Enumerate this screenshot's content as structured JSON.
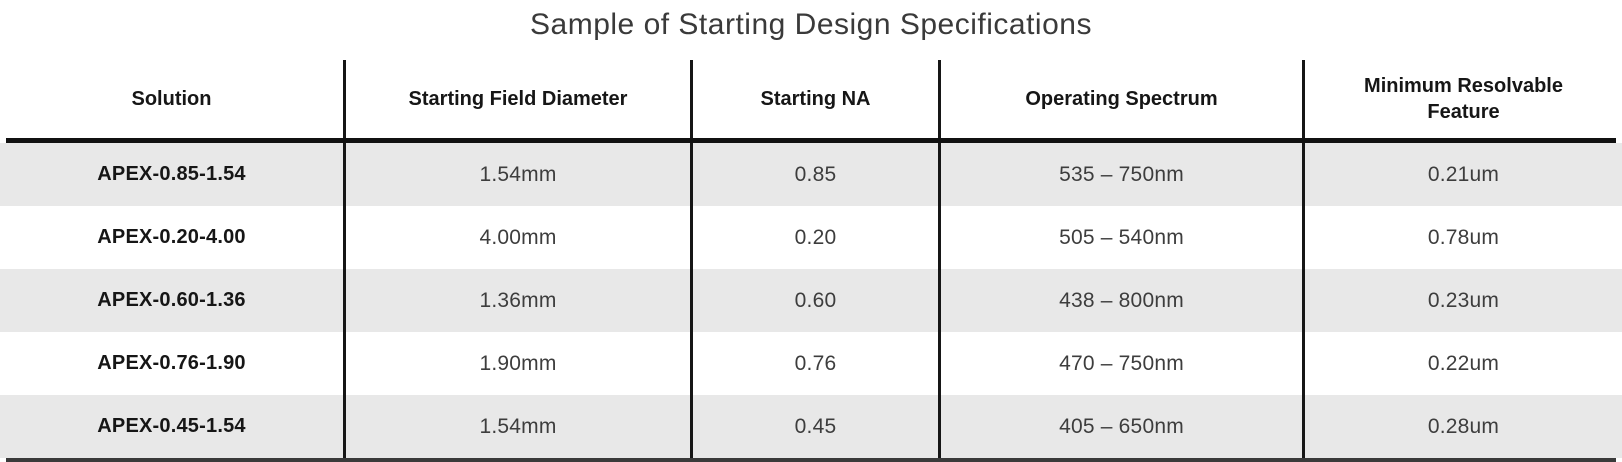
{
  "chart_data": {
    "type": "table",
    "title": "Sample of Starting Design Specifications",
    "columns": [
      "Solution",
      "Starting Field Diameter",
      "Starting NA",
      "Operating Spectrum",
      "Minimum Resolvable Feature"
    ],
    "rows": [
      [
        "APEX-0.85-1.54",
        "1.54mm",
        "0.85",
        "535 – 750nm",
        "0.21um"
      ],
      [
        "APEX-0.20-4.00",
        "4.00mm",
        "0.20",
        "505 – 540nm",
        "0.78um"
      ],
      [
        "APEX-0.60-1.36",
        "1.36mm",
        "0.60",
        "438 – 800nm",
        "0.23um"
      ],
      [
        "APEX-0.76-1.90",
        "1.90mm",
        "0.76",
        "470 – 750nm",
        "0.22um"
      ],
      [
        "APEX-0.45-1.54",
        "1.54mm",
        "0.45",
        "405 – 650nm",
        "0.28um"
      ]
    ],
    "layout": {
      "striped_rows": [
        1,
        3,
        5
      ],
      "stripe_color": "#e8e8e8",
      "border_color": "#161616",
      "header_bold": true,
      "first_column_bold": true,
      "grid": "vertical separators between columns, thick rule under header and at table bottom"
    }
  },
  "colors": {
    "stripe": "#e8e8e8",
    "border": "#161616",
    "bottom_rule": "#3a3a3a",
    "body_text": "#3d3d3d",
    "bold_text": "#161616",
    "title_text": "#3a3a3a"
  }
}
